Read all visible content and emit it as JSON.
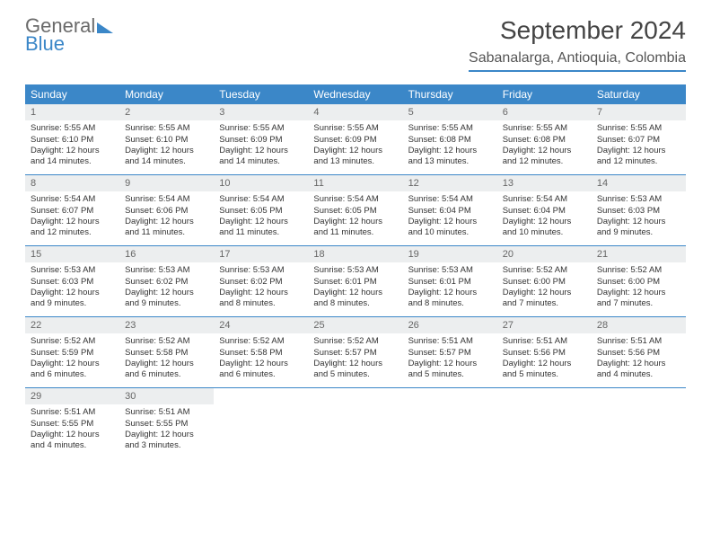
{
  "brand": {
    "line1": "General",
    "line2": "Blue"
  },
  "title": "September 2024",
  "location": "Sabanalarga, Antioquia, Colombia",
  "colors": {
    "accent": "#3b87c8",
    "header_bg": "#3b87c8",
    "daynum_bg": "#eceeef",
    "text": "#333333"
  },
  "day_headers": [
    "Sunday",
    "Monday",
    "Tuesday",
    "Wednesday",
    "Thursday",
    "Friday",
    "Saturday"
  ],
  "weeks": [
    [
      {
        "n": "1",
        "sr": "Sunrise: 5:55 AM",
        "ss": "Sunset: 6:10 PM",
        "d1": "Daylight: 12 hours",
        "d2": "and 14 minutes."
      },
      {
        "n": "2",
        "sr": "Sunrise: 5:55 AM",
        "ss": "Sunset: 6:10 PM",
        "d1": "Daylight: 12 hours",
        "d2": "and 14 minutes."
      },
      {
        "n": "3",
        "sr": "Sunrise: 5:55 AM",
        "ss": "Sunset: 6:09 PM",
        "d1": "Daylight: 12 hours",
        "d2": "and 14 minutes."
      },
      {
        "n": "4",
        "sr": "Sunrise: 5:55 AM",
        "ss": "Sunset: 6:09 PM",
        "d1": "Daylight: 12 hours",
        "d2": "and 13 minutes."
      },
      {
        "n": "5",
        "sr": "Sunrise: 5:55 AM",
        "ss": "Sunset: 6:08 PM",
        "d1": "Daylight: 12 hours",
        "d2": "and 13 minutes."
      },
      {
        "n": "6",
        "sr": "Sunrise: 5:55 AM",
        "ss": "Sunset: 6:08 PM",
        "d1": "Daylight: 12 hours",
        "d2": "and 12 minutes."
      },
      {
        "n": "7",
        "sr": "Sunrise: 5:55 AM",
        "ss": "Sunset: 6:07 PM",
        "d1": "Daylight: 12 hours",
        "d2": "and 12 minutes."
      }
    ],
    [
      {
        "n": "8",
        "sr": "Sunrise: 5:54 AM",
        "ss": "Sunset: 6:07 PM",
        "d1": "Daylight: 12 hours",
        "d2": "and 12 minutes."
      },
      {
        "n": "9",
        "sr": "Sunrise: 5:54 AM",
        "ss": "Sunset: 6:06 PM",
        "d1": "Daylight: 12 hours",
        "d2": "and 11 minutes."
      },
      {
        "n": "10",
        "sr": "Sunrise: 5:54 AM",
        "ss": "Sunset: 6:05 PM",
        "d1": "Daylight: 12 hours",
        "d2": "and 11 minutes."
      },
      {
        "n": "11",
        "sr": "Sunrise: 5:54 AM",
        "ss": "Sunset: 6:05 PM",
        "d1": "Daylight: 12 hours",
        "d2": "and 11 minutes."
      },
      {
        "n": "12",
        "sr": "Sunrise: 5:54 AM",
        "ss": "Sunset: 6:04 PM",
        "d1": "Daylight: 12 hours",
        "d2": "and 10 minutes."
      },
      {
        "n": "13",
        "sr": "Sunrise: 5:54 AM",
        "ss": "Sunset: 6:04 PM",
        "d1": "Daylight: 12 hours",
        "d2": "and 10 minutes."
      },
      {
        "n": "14",
        "sr": "Sunrise: 5:53 AM",
        "ss": "Sunset: 6:03 PM",
        "d1": "Daylight: 12 hours",
        "d2": "and 9 minutes."
      }
    ],
    [
      {
        "n": "15",
        "sr": "Sunrise: 5:53 AM",
        "ss": "Sunset: 6:03 PM",
        "d1": "Daylight: 12 hours",
        "d2": "and 9 minutes."
      },
      {
        "n": "16",
        "sr": "Sunrise: 5:53 AM",
        "ss": "Sunset: 6:02 PM",
        "d1": "Daylight: 12 hours",
        "d2": "and 9 minutes."
      },
      {
        "n": "17",
        "sr": "Sunrise: 5:53 AM",
        "ss": "Sunset: 6:02 PM",
        "d1": "Daylight: 12 hours",
        "d2": "and 8 minutes."
      },
      {
        "n": "18",
        "sr": "Sunrise: 5:53 AM",
        "ss": "Sunset: 6:01 PM",
        "d1": "Daylight: 12 hours",
        "d2": "and 8 minutes."
      },
      {
        "n": "19",
        "sr": "Sunrise: 5:53 AM",
        "ss": "Sunset: 6:01 PM",
        "d1": "Daylight: 12 hours",
        "d2": "and 8 minutes."
      },
      {
        "n": "20",
        "sr": "Sunrise: 5:52 AM",
        "ss": "Sunset: 6:00 PM",
        "d1": "Daylight: 12 hours",
        "d2": "and 7 minutes."
      },
      {
        "n": "21",
        "sr": "Sunrise: 5:52 AM",
        "ss": "Sunset: 6:00 PM",
        "d1": "Daylight: 12 hours",
        "d2": "and 7 minutes."
      }
    ],
    [
      {
        "n": "22",
        "sr": "Sunrise: 5:52 AM",
        "ss": "Sunset: 5:59 PM",
        "d1": "Daylight: 12 hours",
        "d2": "and 6 minutes."
      },
      {
        "n": "23",
        "sr": "Sunrise: 5:52 AM",
        "ss": "Sunset: 5:58 PM",
        "d1": "Daylight: 12 hours",
        "d2": "and 6 minutes."
      },
      {
        "n": "24",
        "sr": "Sunrise: 5:52 AM",
        "ss": "Sunset: 5:58 PM",
        "d1": "Daylight: 12 hours",
        "d2": "and 6 minutes."
      },
      {
        "n": "25",
        "sr": "Sunrise: 5:52 AM",
        "ss": "Sunset: 5:57 PM",
        "d1": "Daylight: 12 hours",
        "d2": "and 5 minutes."
      },
      {
        "n": "26",
        "sr": "Sunrise: 5:51 AM",
        "ss": "Sunset: 5:57 PM",
        "d1": "Daylight: 12 hours",
        "d2": "and 5 minutes."
      },
      {
        "n": "27",
        "sr": "Sunrise: 5:51 AM",
        "ss": "Sunset: 5:56 PM",
        "d1": "Daylight: 12 hours",
        "d2": "and 5 minutes."
      },
      {
        "n": "28",
        "sr": "Sunrise: 5:51 AM",
        "ss": "Sunset: 5:56 PM",
        "d1": "Daylight: 12 hours",
        "d2": "and 4 minutes."
      }
    ],
    [
      {
        "n": "29",
        "sr": "Sunrise: 5:51 AM",
        "ss": "Sunset: 5:55 PM",
        "d1": "Daylight: 12 hours",
        "d2": "and 4 minutes."
      },
      {
        "n": "30",
        "sr": "Sunrise: 5:51 AM",
        "ss": "Sunset: 5:55 PM",
        "d1": "Daylight: 12 hours",
        "d2": "and 3 minutes."
      },
      {
        "empty": true
      },
      {
        "empty": true
      },
      {
        "empty": true
      },
      {
        "empty": true
      },
      {
        "empty": true
      }
    ]
  ]
}
